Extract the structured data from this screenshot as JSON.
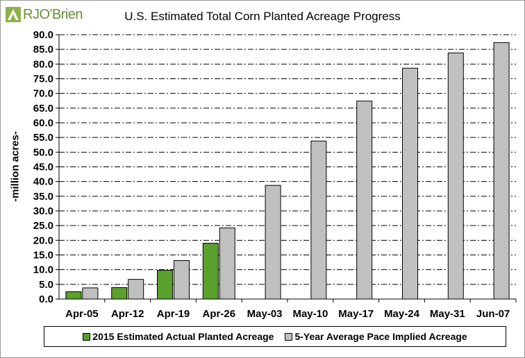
{
  "brand": {
    "logo_text": "RJO'Brien"
  },
  "chart_data": {
    "type": "bar",
    "title": "U.S. Estimated Total Corn Planted Acreage Progress",
    "xlabel": "",
    "ylabel": "-million acres-",
    "ylim": [
      0,
      90
    ],
    "ytick_step": 5,
    "ytick_labels": [
      "0.0",
      "5.0",
      "10.0",
      "15.0",
      "20.0",
      "25.0",
      "30.0",
      "35.0",
      "40.0",
      "45.0",
      "50.0",
      "55.0",
      "60.0",
      "65.0",
      "70.0",
      "75.0",
      "80.0",
      "85.0",
      "90.0"
    ],
    "categories": [
      "Apr-05",
      "Apr-12",
      "Apr-19",
      "Apr-26",
      "May-03",
      "May-10",
      "May-17",
      "May-24",
      "May-31",
      "Jun-07"
    ],
    "series": [
      {
        "name": "2015 Estimated Actual Planted Acreage",
        "color": "#5aa02c",
        "values": [
          2.5,
          3.9,
          9.8,
          19.0,
          null,
          null,
          null,
          null,
          null,
          null
        ]
      },
      {
        "name": "5-Year Average Pace Implied Acreage",
        "color": "#c0c0c0",
        "values": [
          3.8,
          6.7,
          13.1,
          24.2,
          38.7,
          53.8,
          67.4,
          78.6,
          83.8,
          87.3
        ]
      }
    ],
    "grid": true,
    "legend_position": "bottom"
  }
}
